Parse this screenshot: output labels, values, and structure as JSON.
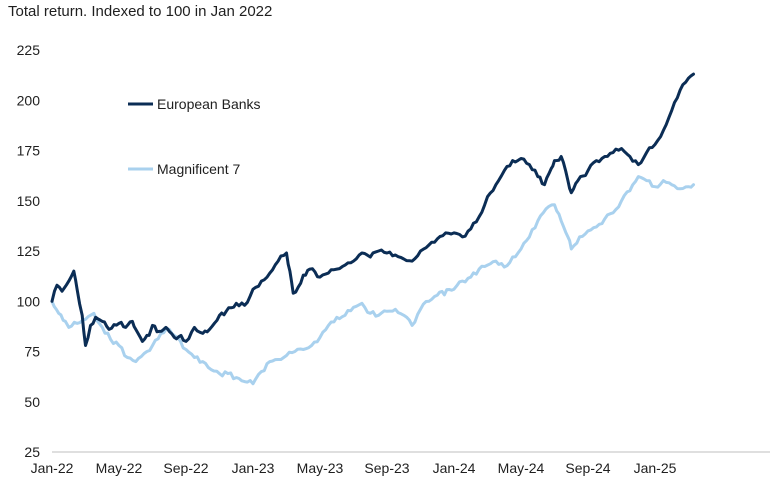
{
  "chart_data": {
    "type": "line",
    "title": "Total return. Indexed to 100 in Jan 2022",
    "xlabel": "",
    "ylabel": "",
    "ylim": [
      25,
      225
    ],
    "y_ticks": [
      25,
      50,
      75,
      100,
      125,
      150,
      175,
      200,
      225
    ],
    "x_range": [
      "2022-01",
      "2025-03.8"
    ],
    "x_ticks": [
      "Jan-22",
      "May-22",
      "Sep-22",
      "Jan-23",
      "May-23",
      "Sep-23",
      "Jan-24",
      "May-24",
      "Sep-24",
      "Jan-25"
    ],
    "grid": false,
    "legend_placement": "top-left",
    "series": [
      {
        "name": "European Banks",
        "color": "#0b2d55",
        "points": [
          [
            "2022-01",
            100
          ],
          [
            "2022-01.3",
            108
          ],
          [
            "2022-01.6",
            105
          ],
          [
            "2022-02",
            110
          ],
          [
            "2022-02.3",
            115
          ],
          [
            "2022-02.5",
            106
          ],
          [
            "2022-02.8",
            93
          ],
          [
            "2022-03",
            78
          ],
          [
            "2022-03.3",
            88
          ],
          [
            "2022-03.6",
            92
          ],
          [
            "2022-04",
            90
          ],
          [
            "2022-04.4",
            86
          ],
          [
            "2022-05",
            89
          ],
          [
            "2022-05.4",
            87
          ],
          [
            "2022-05.8",
            90
          ],
          [
            "2022-06",
            86
          ],
          [
            "2022-06.4",
            80
          ],
          [
            "2022-06.8",
            83
          ],
          [
            "2022-07",
            88
          ],
          [
            "2022-07.4",
            85
          ],
          [
            "2022-07.8",
            87
          ],
          [
            "2022-08",
            85
          ],
          [
            "2022-08.3",
            82
          ],
          [
            "2022-08.7",
            83
          ],
          [
            "2022-09",
            80
          ],
          [
            "2022-09.5",
            87
          ],
          [
            "2022-10",
            84
          ],
          [
            "2022-10.4",
            86
          ],
          [
            "2022-11",
            93
          ],
          [
            "2022-11.4",
            95
          ],
          [
            "2022-12",
            99
          ],
          [
            "2022-12.5",
            98
          ],
          [
            "2023-01",
            106
          ],
          [
            "2023-01.5",
            110
          ],
          [
            "2023-02",
            114
          ],
          [
            "2023-02.5",
            120
          ],
          [
            "2023-03",
            124
          ],
          [
            "2023-03.2",
            115
          ],
          [
            "2023-03.4",
            104
          ],
          [
            "2023-03.7",
            107
          ],
          [
            "2023-04",
            113
          ],
          [
            "2023-04.4",
            116
          ],
          [
            "2023-05",
            112
          ],
          [
            "2023-05.5",
            114
          ],
          [
            "2023-06",
            116
          ],
          [
            "2023-06.5",
            118
          ],
          [
            "2023-07",
            120
          ],
          [
            "2023-07.5",
            124
          ],
          [
            "2023-08",
            122
          ],
          [
            "2023-08.5",
            125
          ],
          [
            "2023-09",
            124
          ],
          [
            "2023-09.5",
            123
          ],
          [
            "2023-10",
            121
          ],
          [
            "2023-10.5",
            120
          ],
          [
            "2023-11",
            125
          ],
          [
            "2023-11.5",
            128
          ],
          [
            "2023-12",
            131
          ],
          [
            "2023-12.5",
            134
          ],
          [
            "2024-01",
            134
          ],
          [
            "2024-01.5",
            132
          ],
          [
            "2024-02",
            136
          ],
          [
            "2024-02.5",
            142
          ],
          [
            "2024-03",
            152
          ],
          [
            "2024-03.5",
            158
          ],
          [
            "2024-04",
            165
          ],
          [
            "2024-04.5",
            170
          ],
          [
            "2024-05",
            171
          ],
          [
            "2024-05.5",
            168
          ],
          [
            "2024-06",
            162
          ],
          [
            "2024-06.4",
            158
          ],
          [
            "2024-06.8",
            166
          ],
          [
            "2024-07",
            170
          ],
          [
            "2024-07.4",
            172
          ],
          [
            "2024-07.8",
            160
          ],
          [
            "2024-08",
            154
          ],
          [
            "2024-08.4",
            160
          ],
          [
            "2024-09",
            165
          ],
          [
            "2024-09.5",
            170
          ],
          [
            "2024-10",
            172
          ],
          [
            "2024-10.5",
            174
          ],
          [
            "2024-11",
            176
          ],
          [
            "2024-11.5",
            172
          ],
          [
            "2024-12",
            168
          ],
          [
            "2024-12.5",
            174
          ],
          [
            "2025-01",
            178
          ],
          [
            "2025-01.5",
            185
          ],
          [
            "2025-02",
            195
          ],
          [
            "2025-02.5",
            205
          ],
          [
            "2025-03",
            211
          ],
          [
            "2025-03.3",
            213
          ]
        ]
      },
      {
        "name": "Magnificent 7",
        "color": "#a9d1ee",
        "points": [
          [
            "2022-01",
            100
          ],
          [
            "2022-01.4",
            94
          ],
          [
            "2022-01.8",
            90
          ],
          [
            "2022-02",
            87
          ],
          [
            "2022-02.5",
            89
          ],
          [
            "2022-03",
            91
          ],
          [
            "2022-03.5",
            94
          ],
          [
            "2022-04",
            87
          ],
          [
            "2022-04.5",
            81
          ],
          [
            "2022-05",
            78
          ],
          [
            "2022-05.5",
            72
          ],
          [
            "2022-06",
            70
          ],
          [
            "2022-06.5",
            74
          ],
          [
            "2022-07",
            78
          ],
          [
            "2022-07.5",
            84
          ],
          [
            "2022-08",
            86
          ],
          [
            "2022-08.5",
            82
          ],
          [
            "2022-09",
            76
          ],
          [
            "2022-09.5",
            72
          ],
          [
            "2022-10",
            70
          ],
          [
            "2022-10.5",
            66
          ],
          [
            "2022-11",
            64
          ],
          [
            "2022-11.5",
            64
          ],
          [
            "2022-12",
            62
          ],
          [
            "2022-12.5",
            60
          ],
          [
            "2023-01",
            59
          ],
          [
            "2023-01.5",
            65
          ],
          [
            "2023-02",
            70
          ],
          [
            "2023-02.5",
            71
          ],
          [
            "2023-03",
            73
          ],
          [
            "2023-03.5",
            75
          ],
          [
            "2023-04",
            76
          ],
          [
            "2023-04.5",
            78
          ],
          [
            "2023-05",
            82
          ],
          [
            "2023-05.5",
            88
          ],
          [
            "2023-06",
            92
          ],
          [
            "2023-06.5",
            93
          ],
          [
            "2023-07",
            97
          ],
          [
            "2023-07.5",
            99
          ],
          [
            "2023-08",
            94
          ],
          [
            "2023-08.5",
            93
          ],
          [
            "2023-09",
            95
          ],
          [
            "2023-09.5",
            96
          ],
          [
            "2023-10",
            93
          ],
          [
            "2023-10.5",
            88
          ],
          [
            "2023-11",
            96
          ],
          [
            "2023-11.5",
            100
          ],
          [
            "2023-12",
            103
          ],
          [
            "2024-01",
            106
          ],
          [
            "2024-01.5",
            110
          ],
          [
            "2024-02",
            112
          ],
          [
            "2024-02.5",
            116
          ],
          [
            "2024-03",
            118
          ],
          [
            "2024-03.5",
            120
          ],
          [
            "2024-04",
            117
          ],
          [
            "2024-04.5",
            122
          ],
          [
            "2024-05",
            126
          ],
          [
            "2024-05.5",
            132
          ],
          [
            "2024-06",
            140
          ],
          [
            "2024-06.5",
            146
          ],
          [
            "2024-07",
            148
          ],
          [
            "2024-07.4",
            140
          ],
          [
            "2024-07.8",
            132
          ],
          [
            "2024-08",
            126
          ],
          [
            "2024-08.5",
            132
          ],
          [
            "2024-09",
            135
          ],
          [
            "2024-09.5",
            137
          ],
          [
            "2024-10",
            141
          ],
          [
            "2024-10.5",
            144
          ],
          [
            "2024-11",
            150
          ],
          [
            "2024-11.5",
            155
          ],
          [
            "2024-12",
            162
          ],
          [
            "2024-12.5",
            160
          ],
          [
            "2025-01",
            157
          ],
          [
            "2025-01.5",
            160
          ],
          [
            "2025-02",
            158
          ],
          [
            "2025-02.5",
            156
          ],
          [
            "2025-03",
            157
          ],
          [
            "2025-03.3",
            158
          ]
        ]
      }
    ]
  }
}
